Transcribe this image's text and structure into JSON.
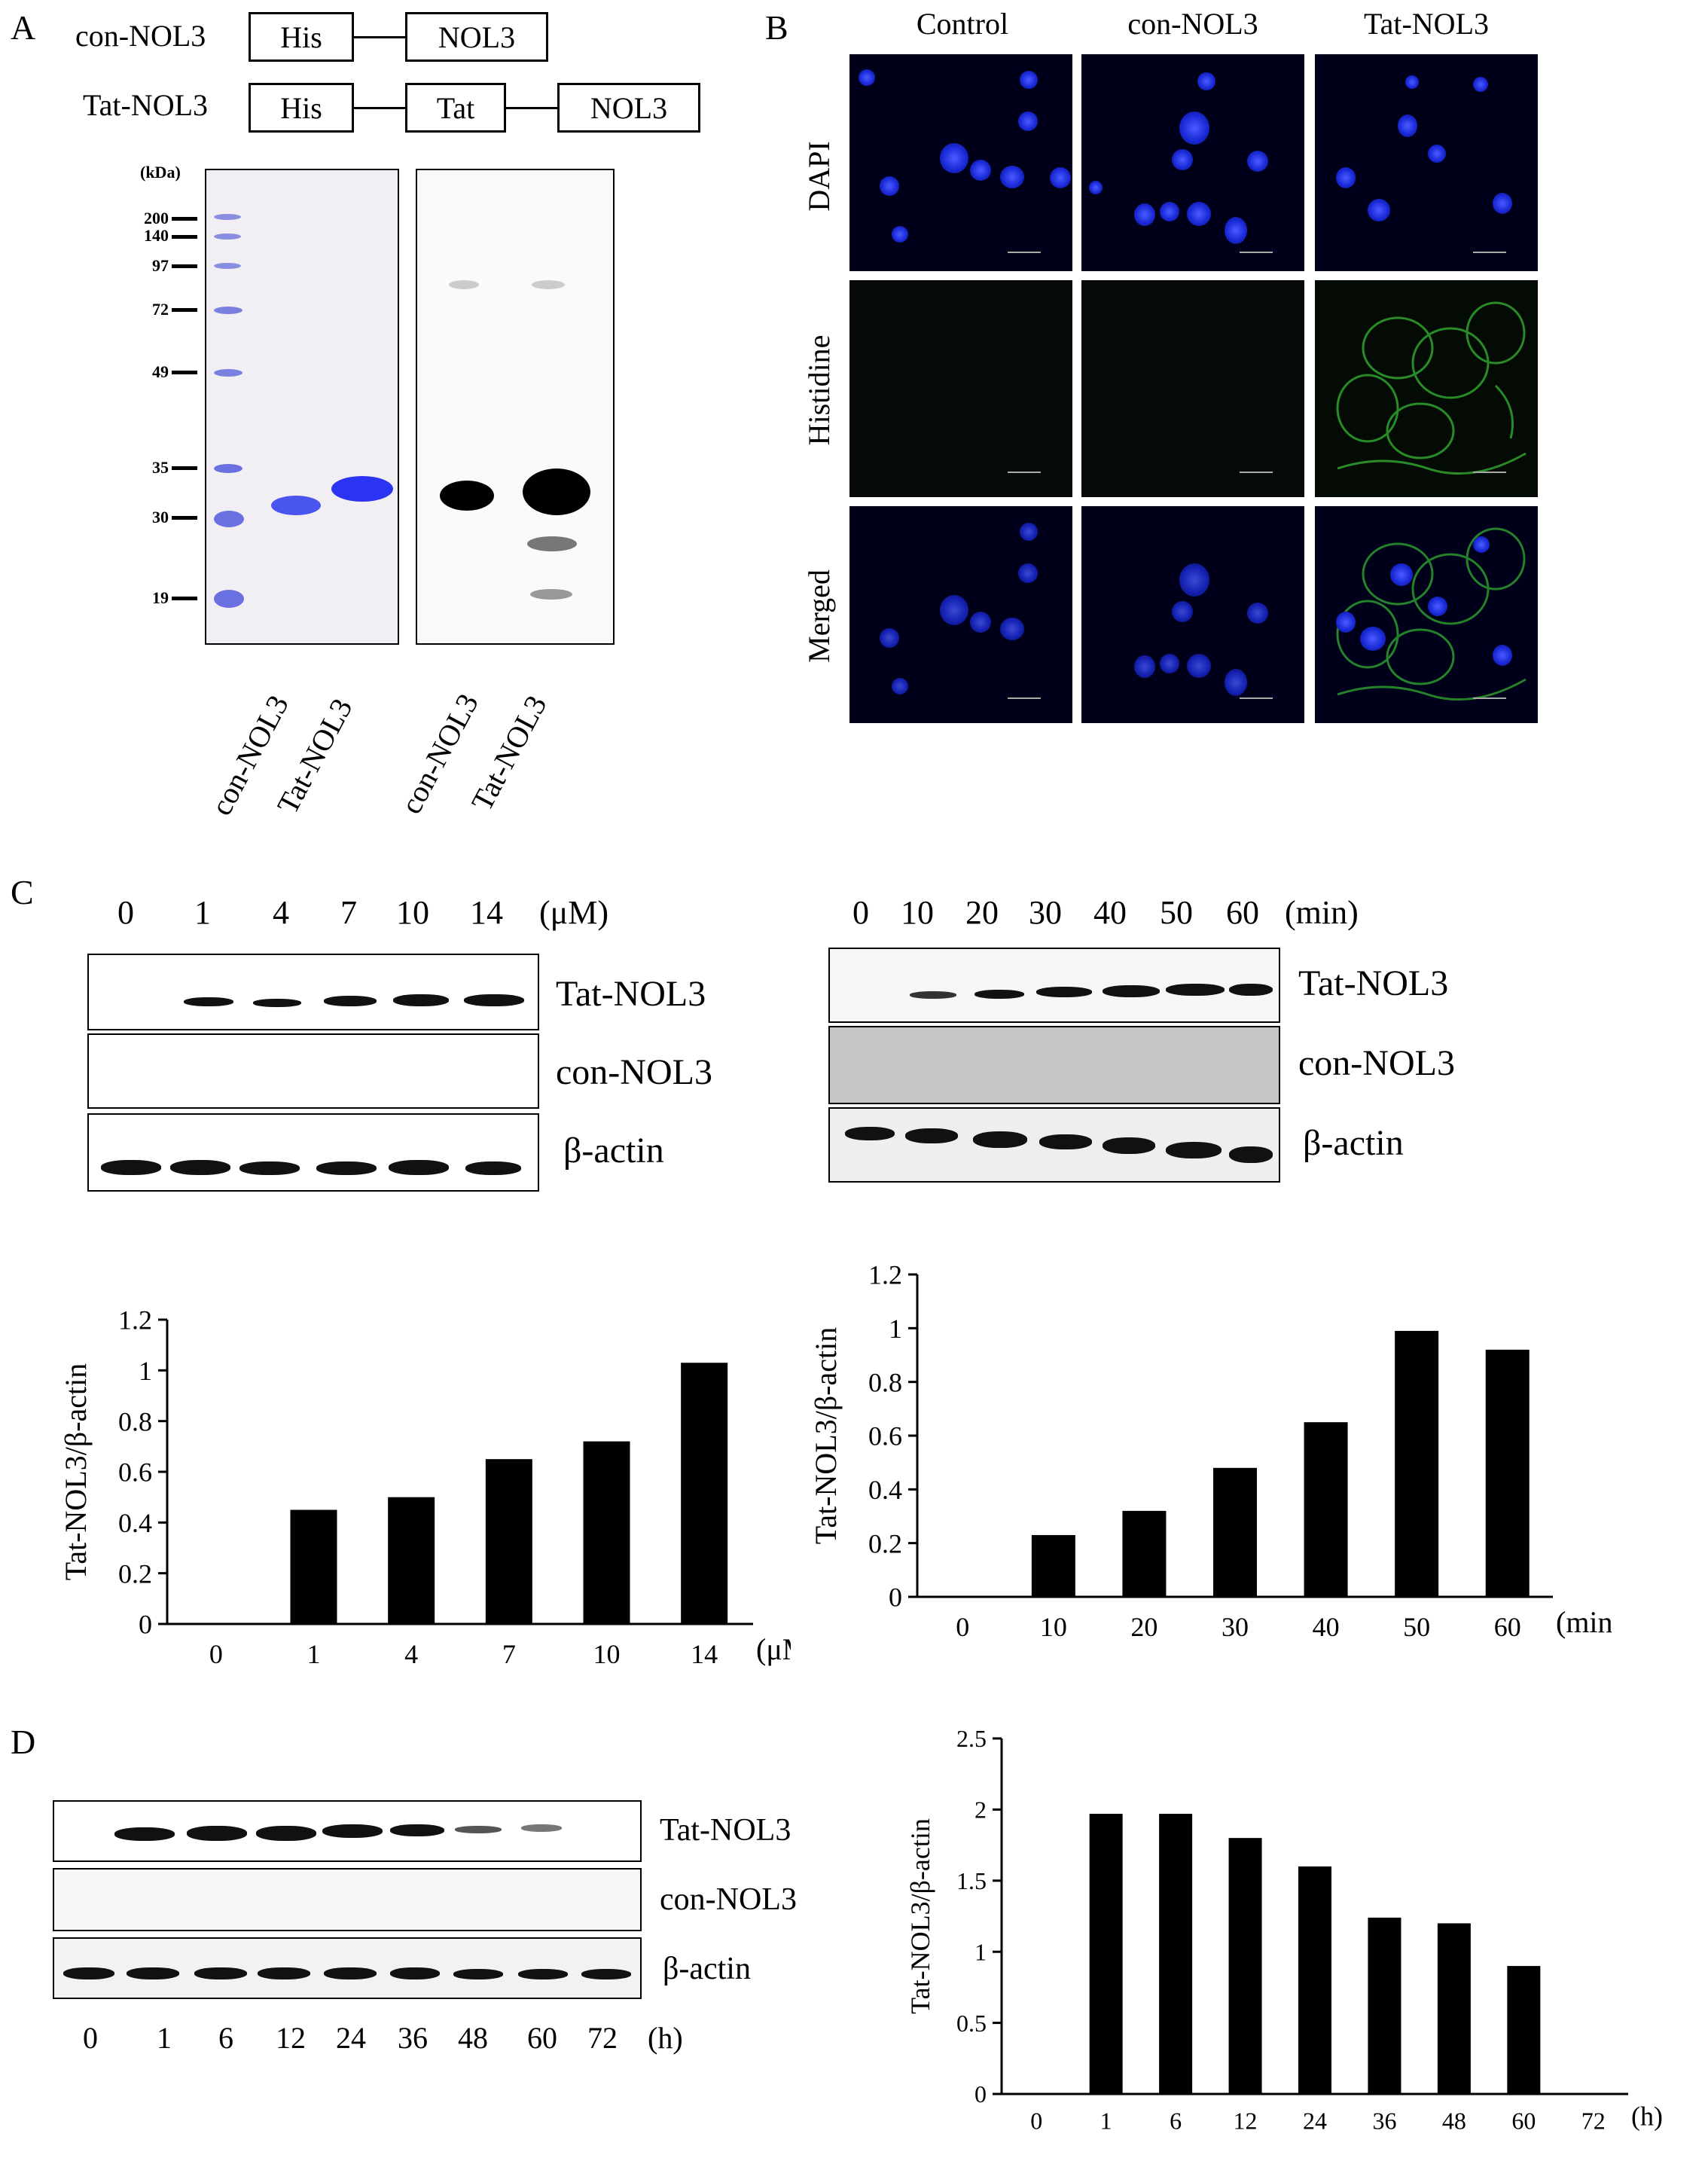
{
  "panel_labels": {
    "a": "A",
    "b": "B",
    "c": "C",
    "d": "D"
  },
  "panel_a": {
    "constructs": [
      {
        "name": "con-NOL3",
        "boxes": [
          "His",
          "NOL3"
        ]
      },
      {
        "name": "Tat-NOL3",
        "boxes": [
          "His",
          "Tat",
          "NOL3"
        ]
      }
    ],
    "kda_label": "(kDa)",
    "markers": [
      "200",
      "140",
      "97",
      "72",
      "49",
      "35",
      "30",
      "19"
    ],
    "lane_labels": [
      "con-NOL3",
      "Tat-NOL3",
      "con-NOL3",
      "Tat-NOL3"
    ]
  },
  "panel_b": {
    "columns": [
      "Control",
      "con-NOL3",
      "Tat-NOL3"
    ],
    "rows": [
      "DAPI",
      "Histidine",
      "Merged"
    ]
  },
  "panel_c": {
    "dose": {
      "x_labels": [
        "0",
        "1",
        "4",
        "7",
        "10",
        "14"
      ],
      "unit": "(μM)",
      "blot_rows": [
        "Tat-NOL3",
        "con-NOL3",
        "β-actin"
      ]
    },
    "time": {
      "x_labels": [
        "0",
        "10",
        "20",
        "30",
        "40",
        "50",
        "60"
      ],
      "unit": "(min)",
      "blot_rows": [
        "Tat-NOL3",
        "con-NOL3",
        "β-actin"
      ]
    }
  },
  "panel_d": {
    "x_labels": [
      "0",
      "1",
      "6",
      "12",
      "24",
      "36",
      "48",
      "60",
      "72"
    ],
    "unit": "(h)",
    "blot_rows": [
      "Tat-NOL3",
      "con-NOL3",
      "β-actin"
    ]
  },
  "chart_data": [
    {
      "type": "bar",
      "categories": [
        "0",
        "1",
        "4",
        "7",
        "10",
        "14"
      ],
      "values": [
        0,
        0.45,
        0.5,
        0.65,
        0.72,
        1.03
      ],
      "ylabel": "Tat-NOL3/β-actin",
      "xlabel": "(μM)",
      "ylim": [
        0,
        1.2
      ],
      "yticks": [
        "0",
        "0.2",
        "0.4",
        "0.6",
        "0.8",
        "1",
        "1.2"
      ],
      "color": "#000000"
    },
    {
      "type": "bar",
      "categories": [
        "0",
        "10",
        "20",
        "30",
        "40",
        "50",
        "60"
      ],
      "values": [
        0,
        0.23,
        0.32,
        0.48,
        0.65,
        0.99,
        0.92
      ],
      "ylabel": "Tat-NOL3/β-actin",
      "xlabel": "(min)",
      "ylim": [
        0,
        1.2
      ],
      "yticks": [
        "0",
        "0.2",
        "0.4",
        "0.6",
        "0.8",
        "1",
        "1.2"
      ],
      "color": "#000000"
    },
    {
      "type": "bar",
      "categories": [
        "0",
        "1",
        "6",
        "12",
        "24",
        "36",
        "48",
        "60",
        "72"
      ],
      "values": [
        0,
        1.97,
        1.97,
        1.8,
        1.6,
        1.24,
        1.2,
        0.9,
        0
      ],
      "ylabel": "Tat-NOL3/β-actin",
      "xlabel": "(h)",
      "ylim": [
        0,
        2.5
      ],
      "yticks": [
        "0",
        "0.5",
        "1",
        "1.5",
        "2",
        "2.5"
      ],
      "color": "#000000"
    }
  ]
}
